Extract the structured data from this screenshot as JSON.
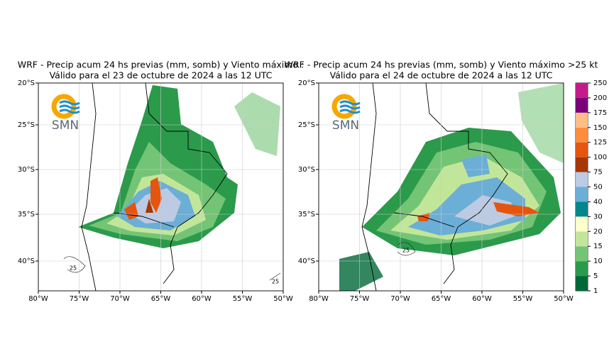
{
  "panels": [
    {
      "title": "WRF - Precip acum 24 hs previas (mm, somb) y Viento máximo :",
      "subtitle": "Válido para el 23 de octubre de 2024 a las 12 UTC",
      "logo": "SMN",
      "contour_labels": [
        "25",
        "25"
      ]
    },
    {
      "title": "WRF - Precip acum 24 hs previas (mm, somb) y Viento máximo >25 kt",
      "subtitle": "Válido para el 24 de octubre de 2024 a las 12 UTC",
      "logo": "SMN",
      "contour_labels": [
        "25"
      ]
    }
  ],
  "x_ticks": [
    "80°W",
    "75°W",
    "70°W",
    "65°W",
    "60°W",
    "55°W",
    "50°W"
  ],
  "y_ticks": [
    "20°S",
    "25°S",
    "30°S",
    "35°S",
    "40°S"
  ],
  "colorbar": {
    "levels": [
      1,
      5,
      10,
      15,
      20,
      30,
      40,
      50,
      75,
      100,
      125,
      150,
      175,
      200,
      250
    ],
    "colors": [
      "#006837",
      "#2b9a4b",
      "#74c476",
      "#c2e699",
      "#ffffcc",
      "#00868b",
      "#6baed6",
      "#bccae3",
      "#a63603",
      "#e6550d",
      "#fd8d3c",
      "#fdbe85",
      "#7a0177",
      "#c51b8a"
    ]
  }
}
